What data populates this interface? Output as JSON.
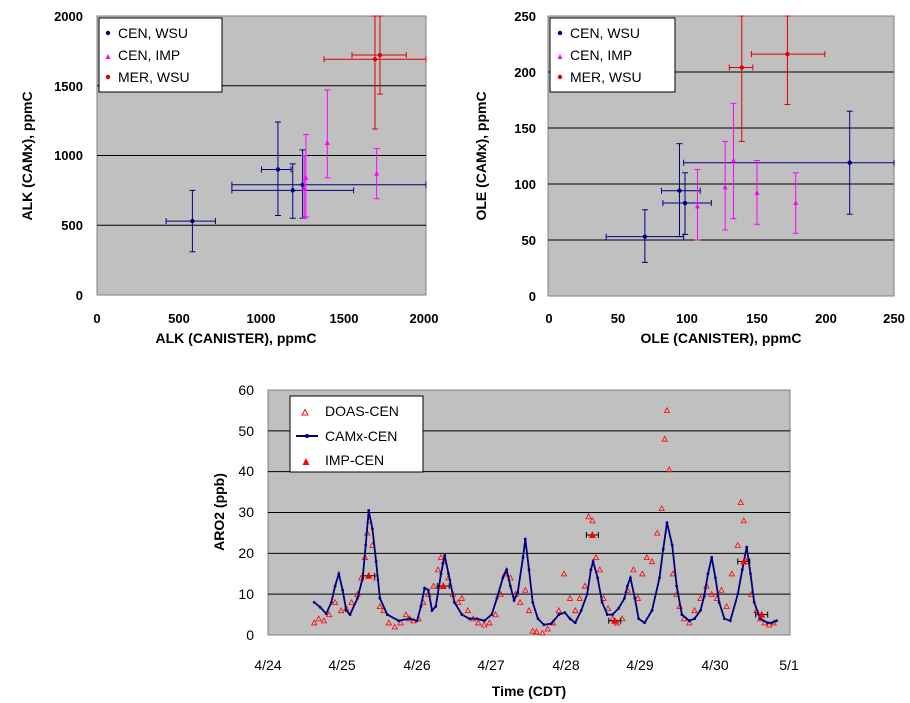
{
  "colors": {
    "plot_bg": "#c0c0c0",
    "cen_wsu": "#000080",
    "cen_imp": "#ff00ff",
    "mer_wsu": "#e00000",
    "doas": "#ff0000",
    "camx": "#000080",
    "imp_cen": "#ff0000"
  },
  "chart_data": [
    {
      "type": "scatter",
      "xlabel": "ALK (CANISTER), ppmC",
      "ylabel": "ALK (CAMx), ppmC",
      "xlim": [
        0,
        2000
      ],
      "ylim": [
        0,
        2000
      ],
      "xticks": [
        "0",
        "500",
        "1000",
        "1500",
        "2000"
      ],
      "yticks": [
        "0",
        "500",
        "1000",
        "1500",
        "2000"
      ],
      "grid": "horizontal",
      "legend_position": "top-left",
      "series": [
        {
          "name": "CEN, WSU",
          "points": [
            {
              "x": 580,
              "y": 530,
              "xlo": 420,
              "xhi": 720,
              "ylo": 310,
              "yhi": 750
            },
            {
              "x": 1100,
              "y": 900,
              "xlo": 1000,
              "xhi": 1180,
              "ylo": 570,
              "yhi": 1240
            },
            {
              "x": 1190,
              "y": 750,
              "xlo": 820,
              "xhi": 1560,
              "ylo": 550,
              "yhi": 940
            },
            {
              "x": 1250,
              "y": 790,
              "xlo": 820,
              "xhi": 2000,
              "ylo": 550,
              "yhi": 1040
            }
          ]
        },
        {
          "name": "CEN, IMP",
          "points": [
            {
              "x": 1260,
              "y": 760,
              "ylo": 550,
              "yhi": 1000
            },
            {
              "x": 1270,
              "y": 840,
              "ylo": 560,
              "yhi": 1150
            },
            {
              "x": 1400,
              "y": 1090,
              "ylo": 840,
              "yhi": 1470
            },
            {
              "x": 1700,
              "y": 870,
              "ylo": 690,
              "yhi": 1050
            }
          ]
        },
        {
          "name": "MER, WSU",
          "points": [
            {
              "x": 1690,
              "y": 1690,
              "xlo": 1380,
              "xhi": 2000,
              "ylo": 1190,
              "yhi": 2000
            },
            {
              "x": 1720,
              "y": 1720,
              "xlo": 1550,
              "xhi": 1880,
              "ylo": 1440,
              "yhi": 2000
            }
          ]
        }
      ]
    },
    {
      "type": "scatter",
      "xlabel": "OLE (CANISTER), ppmC",
      "ylabel": "OLE (CAMx), ppmC",
      "xlim": [
        0,
        250
      ],
      "ylim": [
        0,
        250
      ],
      "xticks": [
        "0",
        "50",
        "100",
        "150",
        "200",
        "250"
      ],
      "yticks": [
        "0",
        "50",
        "100",
        "150",
        "200",
        "250"
      ],
      "grid": "horizontal",
      "legend_position": "top-left",
      "series": [
        {
          "name": "CEN, WSU",
          "points": [
            {
              "x": 70,
              "y": 53,
              "xlo": 42,
              "xhi": 98,
              "ylo": 30,
              "yhi": 77
            },
            {
              "x": 95,
              "y": 94,
              "xlo": 82,
              "xhi": 110,
              "ylo": 53,
              "yhi": 136
            },
            {
              "x": 99,
              "y": 83,
              "xlo": 83,
              "xhi": 118,
              "ylo": 55,
              "yhi": 110
            },
            {
              "x": 218,
              "y": 119,
              "xlo": 98,
              "xhi": 250,
              "ylo": 73,
              "yhi": 165
            }
          ]
        },
        {
          "name": "CEN, IMP",
          "points": [
            {
              "x": 108,
              "y": 80,
              "ylo": 50,
              "yhi": 113
            },
            {
              "x": 128,
              "y": 97,
              "ylo": 59,
              "yhi": 138
            },
            {
              "x": 134,
              "y": 121,
              "ylo": 69,
              "yhi": 172
            },
            {
              "x": 151,
              "y": 92,
              "ylo": 64,
              "yhi": 121
            },
            {
              "x": 179,
              "y": 83,
              "ylo": 56,
              "yhi": 110
            }
          ]
        },
        {
          "name": "MER, WSU",
          "points": [
            {
              "x": 140,
              "y": 204,
              "xlo": 131,
              "xhi": 148,
              "ylo": 138,
              "yhi": 250
            },
            {
              "x": 173,
              "y": 216,
              "xlo": 147,
              "xhi": 200,
              "ylo": 171,
              "yhi": 250
            }
          ]
        }
      ]
    },
    {
      "type": "line",
      "xlabel": "Time (CDT)",
      "ylabel": "ARO2 (ppb)",
      "xlim": [
        24,
        31
      ],
      "ylim": [
        0,
        60
      ],
      "xticks": [
        "4/24",
        "4/25",
        "4/26",
        "4/27",
        "4/28",
        "4/29",
        "4/30",
        "5/1"
      ],
      "yticks": [
        "0",
        "10",
        "20",
        "30",
        "40",
        "50",
        "60"
      ],
      "grid": "horizontal",
      "legend_position": "top-left",
      "legend": [
        "DOAS-CEN",
        "CAMx-CEN",
        "IMP-CEN"
      ],
      "camx_cen": [
        [
          24.62,
          8
        ],
        [
          24.7,
          6.8
        ],
        [
          24.78,
          5.2
        ],
        [
          24.85,
          8
        ],
        [
          24.9,
          12
        ],
        [
          24.95,
          15
        ],
        [
          25.0,
          11
        ],
        [
          25.05,
          6
        ],
        [
          25.1,
          5
        ],
        [
          25.2,
          9
        ],
        [
          25.27,
          14
        ],
        [
          25.31,
          22
        ],
        [
          25.35,
          30.5
        ],
        [
          25.4,
          26
        ],
        [
          25.45,
          18
        ],
        [
          25.5,
          9
        ],
        [
          25.6,
          5
        ],
        [
          25.75,
          3.5
        ],
        [
          25.9,
          4
        ],
        [
          26.0,
          3.5
        ],
        [
          26.05,
          7
        ],
        [
          26.1,
          11.5
        ],
        [
          26.15,
          11
        ],
        [
          26.2,
          6
        ],
        [
          26.25,
          7
        ],
        [
          26.32,
          15
        ],
        [
          26.37,
          19.5
        ],
        [
          26.42,
          15
        ],
        [
          26.5,
          8
        ],
        [
          26.6,
          5
        ],
        [
          26.7,
          4
        ],
        [
          26.8,
          4
        ],
        [
          26.9,
          3.5
        ],
        [
          27.0,
          5
        ],
        [
          27.07,
          9
        ],
        [
          27.15,
          14
        ],
        [
          27.2,
          16
        ],
        [
          27.25,
          12
        ],
        [
          27.3,
          8.5
        ],
        [
          27.35,
          10.5
        ],
        [
          27.42,
          19
        ],
        [
          27.45,
          23.5
        ],
        [
          27.5,
          16
        ],
        [
          27.55,
          8
        ],
        [
          27.62,
          4
        ],
        [
          27.7,
          2.5
        ],
        [
          27.8,
          2.8
        ],
        [
          27.9,
          5
        ],
        [
          27.98,
          5.5
        ],
        [
          28.05,
          4
        ],
        [
          28.12,
          3
        ],
        [
          28.2,
          6
        ],
        [
          28.28,
          10
        ],
        [
          28.33,
          16
        ],
        [
          28.36,
          18
        ],
        [
          28.42,
          14
        ],
        [
          28.48,
          8
        ],
        [
          28.55,
          5
        ],
        [
          28.62,
          5
        ],
        [
          28.7,
          6.5
        ],
        [
          28.78,
          9
        ],
        [
          28.82,
          12
        ],
        [
          28.86,
          14
        ],
        [
          28.92,
          9
        ],
        [
          28.97,
          4
        ],
        [
          29.05,
          3
        ],
        [
          29.15,
          6
        ],
        [
          29.25,
          14
        ],
        [
          29.3,
          21
        ],
        [
          29.35,
          27.5
        ],
        [
          29.42,
          22
        ],
        [
          29.48,
          12
        ],
        [
          29.55,
          5
        ],
        [
          29.65,
          3.5
        ],
        [
          29.72,
          4
        ],
        [
          29.8,
          6
        ],
        [
          29.85,
          9.5
        ],
        [
          29.9,
          15
        ],
        [
          29.95,
          19
        ],
        [
          30.0,
          14
        ],
        [
          30.05,
          8
        ],
        [
          30.12,
          4
        ],
        [
          30.2,
          3.5
        ],
        [
          30.3,
          10
        ],
        [
          30.36,
          16
        ],
        [
          30.42,
          21.5
        ],
        [
          30.47,
          15
        ],
        [
          30.52,
          8
        ],
        [
          30.6,
          4
        ],
        [
          30.7,
          3
        ],
        [
          30.76,
          3
        ],
        [
          30.82,
          3.5
        ]
      ],
      "doas_cen": [
        [
          24.62,
          3
        ],
        [
          24.68,
          4
        ],
        [
          24.75,
          3.5
        ],
        [
          24.82,
          5
        ],
        [
          24.9,
          8
        ],
        [
          24.98,
          6
        ],
        [
          25.05,
          6.5
        ],
        [
          25.12,
          8
        ],
        [
          25.2,
          10
        ],
        [
          25.25,
          14
        ],
        [
          25.3,
          19
        ],
        [
          25.33,
          25
        ],
        [
          25.36,
          28
        ],
        [
          25.4,
          22
        ],
        [
          25.45,
          14
        ],
        [
          25.5,
          7
        ],
        [
          25.55,
          6
        ],
        [
          25.62,
          3
        ],
        [
          25.7,
          2
        ],
        [
          25.78,
          3
        ],
        [
          25.85,
          5
        ],
        [
          25.9,
          4
        ],
        [
          25.95,
          3.5
        ],
        [
          26.02,
          4
        ],
        [
          26.08,
          8
        ],
        [
          26.15,
          10
        ],
        [
          26.22,
          12
        ],
        [
          26.28,
          16
        ],
        [
          26.32,
          19
        ],
        [
          26.36,
          18
        ],
        [
          26.42,
          14
        ],
        [
          26.48,
          10
        ],
        [
          26.55,
          8
        ],
        [
          26.6,
          9
        ],
        [
          26.68,
          6
        ],
        [
          26.75,
          4
        ],
        [
          26.82,
          3
        ],
        [
          26.9,
          2.5
        ],
        [
          26.97,
          3
        ],
        [
          27.05,
          5
        ],
        [
          27.12,
          10
        ],
        [
          27.18,
          15
        ],
        [
          27.25,
          14
        ],
        [
          27.32,
          10
        ],
        [
          27.38,
          8
        ],
        [
          27.45,
          11
        ],
        [
          27.5,
          6
        ],
        [
          27.55,
          1
        ],
        [
          27.6,
          0.8
        ],
        [
          27.68,
          0.5
        ],
        [
          27.75,
          1.5
        ],
        [
          27.82,
          3
        ],
        [
          27.9,
          6
        ],
        [
          27.97,
          15
        ],
        [
          28.05,
          9
        ],
        [
          28.12,
          6
        ],
        [
          28.18,
          9
        ],
        [
          28.25,
          12
        ],
        [
          28.3,
          29
        ],
        [
          28.35,
          28
        ],
        [
          28.4,
          19
        ],
        [
          28.45,
          16
        ],
        [
          28.5,
          9
        ],
        [
          28.56,
          6.5
        ],
        [
          28.62,
          4
        ],
        [
          28.68,
          3
        ],
        [
          28.75,
          4
        ],
        [
          28.82,
          11
        ],
        [
          28.9,
          16
        ],
        [
          28.96,
          9
        ],
        [
          29.02,
          15
        ],
        [
          29.08,
          19
        ],
        [
          29.15,
          18
        ],
        [
          29.22,
          25
        ],
        [
          29.28,
          31
        ],
        [
          29.32,
          48
        ],
        [
          29.35,
          55
        ],
        [
          29.38,
          40.5
        ],
        [
          29.43,
          15
        ],
        [
          29.48,
          10
        ],
        [
          29.52,
          7
        ],
        [
          29.58,
          4
        ],
        [
          29.65,
          3
        ],
        [
          29.72,
          6
        ],
        [
          29.8,
          9
        ],
        [
          29.88,
          12
        ],
        [
          29.95,
          10
        ],
        [
          30.02,
          9
        ],
        [
          30.08,
          11
        ],
        [
          30.15,
          7
        ],
        [
          30.22,
          15
        ],
        [
          30.3,
          22
        ],
        [
          30.34,
          32.5
        ],
        [
          30.38,
          28
        ],
        [
          30.42,
          18
        ],
        [
          30.48,
          10
        ],
        [
          30.55,
          6
        ],
        [
          30.6,
          4
        ],
        [
          30.66,
          3
        ],
        [
          30.72,
          2.5
        ],
        [
          30.78,
          3
        ]
      ],
      "imp_cen": [
        {
          "x": 25.35,
          "y": 14.5
        },
        {
          "x": 26.35,
          "y": 12
        },
        {
          "x": 28.35,
          "y": 24.5
        },
        {
          "x": 28.65,
          "y": 3.5
        },
        {
          "x": 30.38,
          "y": 18
        },
        {
          "x": 30.62,
          "y": 5
        }
      ]
    }
  ]
}
